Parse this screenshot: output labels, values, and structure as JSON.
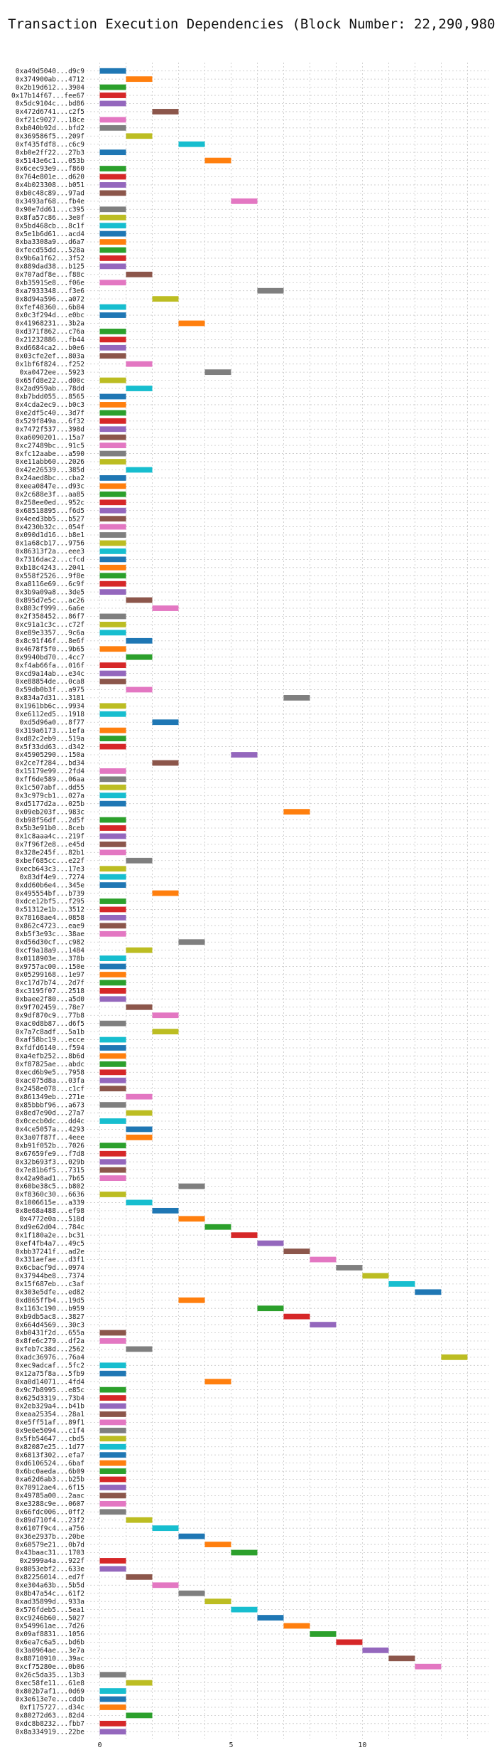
{
  "chart_data": {
    "type": "bar",
    "title": "Transaction Execution Dependencies (Block Number: 22,290,980)",
    "xlabel": "",
    "ylabel": "",
    "xlim": [
      -0.5,
      14.8
    ],
    "xticks": [
      0,
      5,
      10
    ],
    "grid": true,
    "legend": "none",
    "bar_width": 1,
    "colors": [
      "#1f77b4",
      "#ff7f0e",
      "#2ca02c",
      "#d62728",
      "#9467bd",
      "#8c564b",
      "#e377c2",
      "#7f7f7f",
      "#bcbd22",
      "#17becf"
    ],
    "transactions": [
      [
        "0xa49d5040...d9c9",
        0
      ],
      [
        "0x374900ab...4712",
        1
      ],
      [
        "0x2b19d612...3904",
        0
      ],
      [
        "0x17b14f67...fee67",
        0
      ],
      [
        "0x5dc9104c...bd86",
        0
      ],
      [
        "0x472d6741...c2f5",
        2
      ],
      [
        "0xf21c9027...18ce",
        0
      ],
      [
        "0xb040b92d...bfd2",
        0
      ],
      [
        "0x369586f5...209f",
        1
      ],
      [
        "0xf435fdf8...c6c9",
        3
      ],
      [
        "0xb0e2ff22...27b3",
        0
      ],
      [
        "0x5143e6c1...053b",
        4
      ],
      [
        "0x6cec93e9...f860",
        0
      ],
      [
        "0x764e801e...d620",
        0
      ],
      [
        "0x4b023308...b051",
        0
      ],
      [
        "0xb0c48c89...97ad",
        0
      ],
      [
        "0x3493af68...fb4e",
        5
      ],
      [
        "0x90e7dd61...c395",
        0
      ],
      [
        "0x8fa57c86...3e0f",
        0
      ],
      [
        "0x5bd468cb...8c1f",
        0
      ],
      [
        "0x5e1b6d61...acd4",
        0
      ],
      [
        "0xba3308a9...d6a7",
        0
      ],
      [
        "0xfecd55dd...528a",
        0
      ],
      [
        "0x9b6a1f62...3f52",
        0
      ],
      [
        "0x889dad38...b125",
        0
      ],
      [
        "0x707adf8e...f88c",
        1
      ],
      [
        "0xb3591Se8...f06e",
        0
      ],
      [
        "0xa7933348...f3e6",
        6
      ],
      [
        "0x8d94a596...a072",
        2
      ],
      [
        "0xfef48360...6b84",
        0
      ],
      [
        "0x0c3f294d...e0bc",
        0
      ],
      [
        "0x41968231...3b2a",
        3
      ],
      [
        "0xd371f862...c76a",
        0
      ],
      [
        "0x21232886...fb44",
        0
      ],
      [
        "0xd6684ca2...b0e6",
        0
      ],
      [
        "0x03cfe2ef...803a",
        0
      ],
      [
        "0x1bf6f824...f252",
        1
      ],
      [
        "0xa0472ee...5923",
        4
      ],
      [
        "0x65fd8e22...d00c",
        0
      ],
      [
        "0x2ad959ab...78dd",
        1
      ],
      [
        "0xb7bdd055...8565",
        0
      ],
      [
        "0x4cda2ec9...b0c3",
        0
      ],
      [
        "0xe2df5c40...3d7f",
        0
      ],
      [
        "0x529f849a...6f32",
        0
      ],
      [
        "0x7472f537...398d",
        0
      ],
      [
        "0xa6090201...15a7",
        0
      ],
      [
        "0xc27489bc...91c5",
        0
      ],
      [
        "0xfc12aabe...a590",
        0
      ],
      [
        "0xe11abb60...2026",
        0
      ],
      [
        "0x42e26539...385d",
        1
      ],
      [
        "0x24aed8bc...cba2",
        0
      ],
      [
        "0xeea0847e...d93c",
        0
      ],
      [
        "0x2c688e3f...aa85",
        0
      ],
      [
        "0x258ee0ed...952c",
        0
      ],
      [
        "0x68518895...f6d5",
        0
      ],
      [
        "0x4eed3bb5...b527",
        0
      ],
      [
        "0x4230b32c...054f",
        0
      ],
      [
        "0x090d1d16...b8e1",
        0
      ],
      [
        "0x1a68cb17...9756",
        0
      ],
      [
        "0x86313f2a...eee3",
        0
      ],
      [
        "0x7316dac2...cfcd",
        0
      ],
      [
        "0xb18c4243...2041",
        0
      ],
      [
        "0x558f2526...9f8e",
        0
      ],
      [
        "0xa8116e69...6c9f",
        0
      ],
      [
        "0x3b9a09a8...3de5",
        0
      ],
      [
        "0x895d7e5c...ac26",
        1
      ],
      [
        "0x803cf999...6a6e",
        2
      ],
      [
        "0x2f358452...86f7",
        0
      ],
      [
        "0xc91a1c3c...c72f",
        0
      ],
      [
        "0xe89e3357...9c6a",
        0
      ],
      [
        "0x8c91f46f...8e6f",
        1
      ],
      [
        "0x4678f5f0...9b65",
        0
      ],
      [
        "0x9940bd70...4cc7",
        1
      ],
      [
        "0xf4ab66fa...016f",
        0
      ],
      [
        "0xcd9a14ab...e34c",
        0
      ],
      [
        "0xe88854de...0ca8",
        0
      ],
      [
        "0x59db0b3f...a975",
        1
      ],
      [
        "0x834a7d31...3181",
        7
      ],
      [
        "0x1961bb6c...9934",
        0
      ],
      [
        "0xe6112ed5...1918",
        0
      ],
      [
        "0xd5d96a0...8f77",
        2
      ],
      [
        "0x319a6173...1efa",
        0
      ],
      [
        "0xd82c2eb9...519a",
        0
      ],
      [
        "0x5f33dd63...d342",
        0
      ],
      [
        "0x45905290...150a",
        5
      ],
      [
        "0x2ce7f284...bd34",
        2
      ],
      [
        "0x15179e99...2fd4",
        0
      ],
      [
        "0xff6de589...06aa",
        0
      ],
      [
        "0x1c507abf...dd55",
        0
      ],
      [
        "0x3c979cb1...027a",
        0
      ],
      [
        "0xd5177d2a...025b",
        0
      ],
      [
        "0x09eb203f...983c",
        7
      ],
      [
        "0xb98f56df...2d5f",
        0
      ],
      [
        "0x5b3e91b0...8ceb",
        0
      ],
      [
        "0x1c8aaa4c...219f",
        0
      ],
      [
        "0x7f96f2e8...e45d",
        0
      ],
      [
        "0x328e245f...82b1",
        0
      ],
      [
        "0xbef685cc...e22f",
        1
      ],
      [
        "0xecb643c3...17e3",
        0
      ],
      [
        "0x83df4e9...7274",
        0
      ],
      [
        "0xdd60b6e4...345e",
        0
      ],
      [
        "0x495554bf...b739",
        2
      ],
      [
        "0xdce12bf5...f295",
        0
      ],
      [
        "0x51312e1b...3512",
        0
      ],
      [
        "0x78168ae4...0858",
        0
      ],
      [
        "0x862c4723...eae9",
        0
      ],
      [
        "0xb5f3e93c...38ae",
        0
      ],
      [
        "0xd56d30cf...c982",
        3
      ],
      [
        "0xcf9a18a9...1484",
        1
      ],
      [
        "0x0118903e...378b",
        0
      ],
      [
        "0x9757ac00...150e",
        0
      ],
      [
        "0x05299168...1e97",
        0
      ],
      [
        "0xc17d7b74...2d7f",
        0
      ],
      [
        "0xc3195f07...2518",
        0
      ],
      [
        "0xbaee2f80...a5d0",
        0
      ],
      [
        "0x9f702459...78e7",
        1
      ],
      [
        "0x9df870c9...77b8",
        2
      ],
      [
        "0xac0d8b87...d6f5",
        0
      ],
      [
        "0x7a7c8adf...5a1b",
        2
      ],
      [
        "0xaf58bc19...ecce",
        0
      ],
      [
        "0xfdfd6140...f594",
        0
      ],
      [
        "0xa4efb252...8b6d",
        0
      ],
      [
        "0xf87825ae...abdc",
        0
      ],
      [
        "0xecd6b9e5...7958",
        0
      ],
      [
        "0xac075d8a...03fa",
        0
      ],
      [
        "0x2458e078...c1cf",
        0
      ],
      [
        "0x861349eb...271e",
        1
      ],
      [
        "0x85bbbf96...a673",
        0
      ],
      [
        "0x8ed7e90d...27a7",
        1
      ],
      [
        "0x0cecb0dc...dd4c",
        0
      ],
      [
        "0x4ce5057a...4293",
        1
      ],
      [
        "0x3a07f87f...4eee",
        1
      ],
      [
        "0xb91f052b...7026",
        0
      ],
      [
        "0x67659fe9...f7d8",
        0
      ],
      [
        "0x32b693f3...029b",
        0
      ],
      [
        "0x7e81b6f5...7315",
        0
      ],
      [
        "0x42a98ad1...7b65",
        0
      ],
      [
        "0x60be38c5...b802",
        3
      ],
      [
        "0xf8360c30...6636",
        0
      ],
      [
        "0x1006615e...a339",
        1
      ],
      [
        "0x8e68a488...ef98",
        2
      ],
      [
        "0x4772e0a...518d",
        3
      ],
      [
        "0xd9e62d04...784c",
        4
      ],
      [
        "0x1f180a2e...bc31",
        5
      ],
      [
        "0xef4fb4a7...49c5",
        6
      ],
      [
        "0xbb37241f...ad2e",
        7
      ],
      [
        "0x331aefae...d3f1",
        8
      ],
      [
        "0x6cbacf9d...0974",
        9
      ],
      [
        "0x37944be8...7374",
        10
      ],
      [
        "0x15f687eb...c3af",
        11
      ],
      [
        "0x303e5dfe...ed82",
        12
      ],
      [
        "0xd865ffb4...19d5",
        3
      ],
      [
        "0x1163c190...b959",
        6
      ],
      [
        "0xb9db5ac8...3827",
        7
      ],
      [
        "0x664d4569...30c3",
        8
      ],
      [
        "0xb0431f2d...655a",
        0
      ],
      [
        "0x8fe6c279...df2a",
        0
      ],
      [
        "0xfeb7c38d...2562",
        1
      ],
      [
        "0xadc36976...76a4",
        13
      ],
      [
        "0xec9adcaf...5fc2",
        0
      ],
      [
        "0x12a75f8a...5fb9",
        0
      ],
      [
        "0xa0d14071...4fd4",
        4
      ],
      [
        "0x9c7b8995...e85c",
        0
      ],
      [
        "0x625d3319...73b4",
        0
      ],
      [
        "0x2eb329a4...b41b",
        0
      ],
      [
        "0xeaa25354...28a1",
        0
      ],
      [
        "0xe5ff51af...89f1",
        0
      ],
      [
        "0x9e0e5094...c1f4",
        0
      ],
      [
        "0x5fb54647...cbd5",
        0
      ],
      [
        "0x82087e25...1d77",
        0
      ],
      [
        "0x6813f302...efa7",
        0
      ],
      [
        "0xd6106524...6baf",
        0
      ],
      [
        "0x6bc0aeda...6b09",
        0
      ],
      [
        "0xa62d6ab3...b25b",
        0
      ],
      [
        "0x70912ae4...6f15",
        0
      ],
      [
        "0x49785a00...2aac",
        0
      ],
      [
        "0xe3288c9e...0607",
        0
      ],
      [
        "0x66fdc006...0ff2",
        0
      ],
      [
        "0x89d710f4...23f2",
        1
      ],
      [
        "0x6107f9c4...a756",
        2
      ],
      [
        "0x36e2937b...20be",
        3
      ],
      [
        "0x60579e21...0b7d",
        4
      ],
      [
        "0x43baac31...1703",
        5
      ],
      [
        "0x2999a4a...922f",
        0
      ],
      [
        "0x8053ebf2...633e",
        0
      ],
      [
        "0x82256014...ed7f",
        1
      ],
      [
        "0xe304a63b...5b5d",
        2
      ],
      [
        "0x8b47a54c...61f2",
        3
      ],
      [
        "0xad35899d...933a",
        4
      ],
      [
        "0x576fdeb5...5ea1",
        5
      ],
      [
        "0xc9246b60...5027",
        6
      ],
      [
        "0x549961ae...7d26",
        7
      ],
      [
        "0x09af8831...1056",
        8
      ],
      [
        "0x6ea7c6a5...bd6b",
        9
      ],
      [
        "0x3a0964ae...3e7a",
        10
      ],
      [
        "0x88710910...39ac",
        11
      ],
      [
        "0xcf75280e...0b06",
        12
      ],
      [
        "0x26c5da35...13b3",
        0
      ],
      [
        "0xec58fe11...61e8",
        1
      ],
      [
        "0x802b7af1...0d69",
        0
      ],
      [
        "0x3e613e7e...cddb",
        0
      ],
      [
        "0xf175727...d34c",
        0
      ],
      [
        "0x80272d63...82d4",
        1
      ],
      [
        "0xdc8b8232...fbb7",
        0
      ],
      [
        "0x8a334919...22be",
        0
      ]
    ]
  }
}
